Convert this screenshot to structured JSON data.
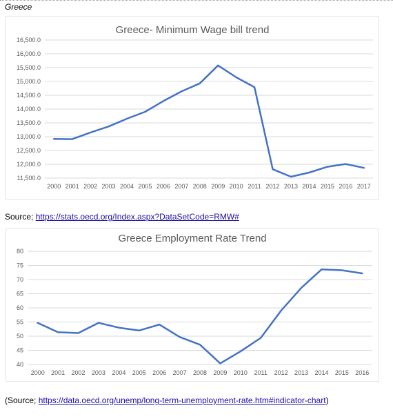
{
  "heading": "Greece",
  "source1": {
    "prefix": "Source; ",
    "link": "https://stats.oecd.org/Index.aspx?DataSetCode=RMW#",
    "suffix": ""
  },
  "source2": {
    "prefix": "(Source; ",
    "link": "https://data.oecd.org/unemp/long-term-unemployment-rate.htm#indicator-chart",
    "suffix": ")"
  },
  "colors": {
    "line": "#4472c4",
    "grid": "#d9d9d9",
    "text": "#595959"
  },
  "chart_data": [
    {
      "type": "line",
      "title": "Greece- Minimum Wage bill trend",
      "xlabel": "",
      "ylabel": "",
      "categories": [
        "2000",
        "2001",
        "2002",
        "2003",
        "2004",
        "2005",
        "2006",
        "2007",
        "2008",
        "2009",
        "2010",
        "2011",
        "2012",
        "2013",
        "2014",
        "2015",
        "2016",
        "2017"
      ],
      "series": [
        {
          "values": [
            12920,
            12910,
            13150,
            13370,
            13650,
            13900,
            14290,
            14640,
            14930,
            15580,
            15150,
            14790,
            11820,
            11550,
            11700,
            11910,
            12010,
            11870
          ]
        }
      ],
      "ylim": [
        11500,
        16500
      ],
      "ystep": 500,
      "ydecimals": 1,
      "grid": true,
      "legend": "none"
    },
    {
      "type": "line",
      "title": "Greece Employment Rate Trend",
      "xlabel": "",
      "ylabel": "",
      "categories": [
        "2000",
        "2001",
        "2002",
        "2003",
        "2004",
        "2005",
        "2006",
        "2007",
        "2008",
        "2009",
        "2010",
        "2011",
        "2012",
        "2013",
        "2014",
        "2015",
        "2016"
      ],
      "series": [
        {
          "values": [
            54.7,
            51.4,
            51.1,
            54.7,
            53.0,
            52.0,
            54.1,
            49.7,
            47.0,
            40.4,
            44.6,
            49.4,
            59.0,
            67.1,
            73.6,
            73.3,
            72.2
          ]
        }
      ],
      "ylim": [
        40,
        80
      ],
      "ystep": 5,
      "ydecimals": 0,
      "grid": true,
      "legend": "none"
    }
  ]
}
